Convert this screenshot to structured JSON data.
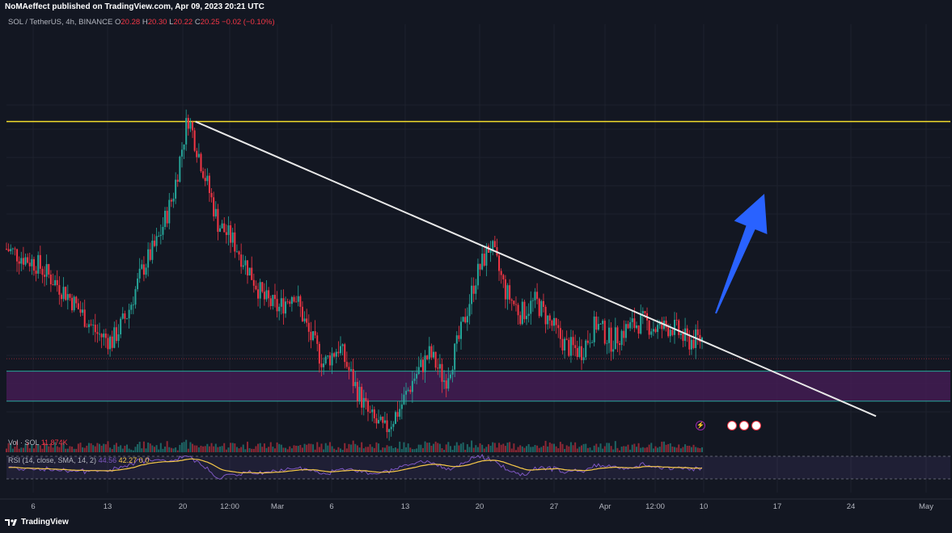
{
  "header": {
    "publisher": "NoMAeffect published on TradingView.com, Apr 09, 2023 20:21 UTC"
  },
  "legend": {
    "symbol": "SOL / TetherUS, 4h, BINANCE",
    "o_label": "O",
    "o_value": "20.28",
    "h_label": "H",
    "h_value": "20.30",
    "l_label": "L",
    "l_value": "20.22",
    "c_label": "C",
    "c_value": "20.25",
    "change": "−0.02 (−0.10%)"
  },
  "volume": {
    "label": "Vol · SOL",
    "value": "11.874K"
  },
  "rsi": {
    "label": "RSI (14, close, SMA, 14, 2)",
    "rsi_value": "44.56",
    "sma_value": "42.27",
    "extra1": "0",
    "extra2": "0"
  },
  "x_axis": {
    "ticks": [
      "6",
      "13",
      "20",
      "12:00",
      "Mar",
      "6",
      "13",
      "20",
      "27",
      "Apr",
      "12:00",
      "10",
      "17",
      "24",
      "May"
    ]
  },
  "footer": {
    "brand": "TradingView"
  },
  "colors": {
    "background": "#131722",
    "up_candle": "#26a69a",
    "down_candle": "#f23645",
    "resistance_line": "#f7e02c",
    "trendline": "#e8e8e8",
    "support_zone": "#4a1d5a",
    "arrow": "#2962ff",
    "rsi_line": "#7e57c2",
    "rsi_sma": "#f7c948"
  },
  "icons": [
    "tradingview-logo-icon",
    "flash-event-icon",
    "flag-event-icon"
  ],
  "chart_data": {
    "type": "candlestick",
    "title": "",
    "symbol": "SOL / TetherUS, 4h, BINANCE",
    "x_ticks": [
      "6",
      "13",
      "20",
      "12:00",
      "Mar",
      "6",
      "13",
      "20",
      "27",
      "Apr",
      "12:00",
      "10",
      "17",
      "24",
      "May"
    ],
    "series": [
      {
        "name": "price_path",
        "points": [
          [
            0,
            21.0
          ],
          [
            4,
            20.4
          ],
          [
            8,
            19.2
          ],
          [
            12,
            17.6
          ],
          [
            14,
            17.3
          ],
          [
            16,
            18.4
          ],
          [
            18,
            20.2
          ],
          [
            20,
            21.3
          ],
          [
            22,
            23.1
          ],
          [
            24,
            26.3
          ],
          [
            26,
            24.2
          ],
          [
            28,
            22.0
          ],
          [
            30,
            21.3
          ],
          [
            32,
            20.2
          ],
          [
            34,
            19.0
          ],
          [
            36,
            18.6
          ],
          [
            38,
            19.3
          ],
          [
            40,
            17.6
          ],
          [
            42,
            16.4
          ],
          [
            44,
            17.1
          ],
          [
            46,
            15.6
          ],
          [
            48,
            14.3
          ],
          [
            50,
            13.7
          ],
          [
            52,
            14.6
          ],
          [
            54,
            15.9
          ],
          [
            56,
            16.8
          ],
          [
            58,
            15.7
          ],
          [
            60,
            17.5
          ],
          [
            62,
            19.8
          ],
          [
            64,
            21.2
          ],
          [
            66,
            19.3
          ],
          [
            68,
            18.4
          ],
          [
            70,
            18.9
          ],
          [
            72,
            18.0
          ],
          [
            74,
            17.1
          ],
          [
            76,
            16.9
          ],
          [
            78,
            18.0
          ],
          [
            80,
            17.3
          ],
          [
            82,
            17.8
          ],
          [
            84,
            18.1
          ],
          [
            86,
            17.8
          ],
          [
            88,
            17.9
          ],
          [
            90,
            17.3
          ],
          [
            92,
            17.4
          ]
        ]
      },
      {
        "name": "volume",
        "values": []
      },
      {
        "name": "rsi",
        "values": []
      }
    ],
    "annotations": [
      {
        "type": "horizontal_line",
        "level": 26.1
      },
      {
        "type": "trendline",
        "from": [
          25,
          26.1
        ],
        "to": [
          115,
          14.3
        ]
      },
      {
        "type": "zone",
        "from": 16.1,
        "to": 14.9
      },
      {
        "type": "horizontal_line",
        "level": 16.6
      },
      {
        "type": "arrow",
        "direction": "up"
      }
    ],
    "ylim": [
      13.5,
      30.0
    ],
    "grid": true,
    "legend_position": "top-left"
  }
}
